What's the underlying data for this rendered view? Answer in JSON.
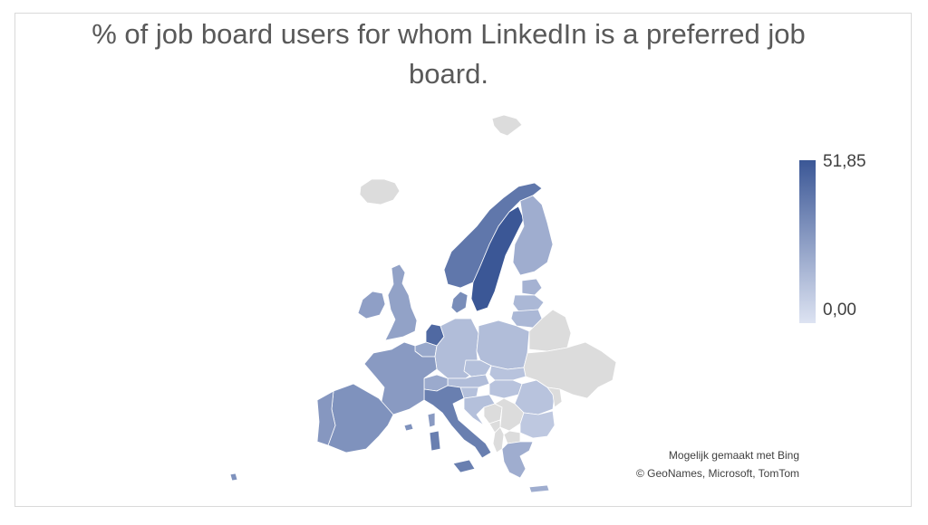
{
  "title": "% of job board users for whom LinkedIn is a preferred job board.",
  "legend": {
    "max_label": "51,85",
    "min_label": "0,00",
    "max_value": 51.85,
    "min_value": 0.0,
    "color_high": "#3b5796",
    "color_low": "#dde3f2"
  },
  "credits": {
    "line1": "Mogelijk gemaakt met Bing",
    "line2": "© GeoNames, Microsoft, TomTom"
  },
  "colors": {
    "no_data": "#dcdcdc",
    "border": "#ffffff"
  },
  "chart_data": {
    "type": "choropleth",
    "region": "Europe",
    "countries": [
      {
        "name": "Sweden",
        "value": 51.85
      },
      {
        "name": "Netherlands",
        "value": 45
      },
      {
        "name": "Norway",
        "value": 40
      },
      {
        "name": "Italy",
        "value": 37
      },
      {
        "name": "Denmark",
        "value": 32
      },
      {
        "name": "Spain",
        "value": 30
      },
      {
        "name": "Portugal",
        "value": 28
      },
      {
        "name": "France",
        "value": 27
      },
      {
        "name": "Ireland",
        "value": 25
      },
      {
        "name": "United Kingdom",
        "value": 24
      },
      {
        "name": "Belgium",
        "value": 22
      },
      {
        "name": "Switzerland",
        "value": 21
      },
      {
        "name": "Finland",
        "value": 20
      },
      {
        "name": "Greece",
        "value": 20
      },
      {
        "name": "Estonia",
        "value": 18
      },
      {
        "name": "Latvia",
        "value": 16
      },
      {
        "name": "Lithuania",
        "value": 16
      },
      {
        "name": "Germany",
        "value": 14
      },
      {
        "name": "Poland",
        "value": 14
      },
      {
        "name": "Austria",
        "value": 14
      },
      {
        "name": "Czech Republic",
        "value": 13
      },
      {
        "name": "Slovenia",
        "value": 13
      },
      {
        "name": "Croatia",
        "value": 13
      },
      {
        "name": "Slovakia",
        "value": 12
      },
      {
        "name": "Hungary",
        "value": 12
      },
      {
        "name": "Romania",
        "value": 12
      },
      {
        "name": "Bulgaria",
        "value": 10
      },
      {
        "name": "Iceland",
        "value": null
      },
      {
        "name": "Belarus",
        "value": null
      },
      {
        "name": "Ukraine",
        "value": null
      },
      {
        "name": "Moldova",
        "value": null
      },
      {
        "name": "Bosnia and Herzegovina",
        "value": null
      },
      {
        "name": "Serbia",
        "value": null
      },
      {
        "name": "Montenegro",
        "value": null
      },
      {
        "name": "Albania",
        "value": null
      },
      {
        "name": "North Macedonia",
        "value": null
      },
      {
        "name": "Svalbard",
        "value": null
      }
    ]
  }
}
